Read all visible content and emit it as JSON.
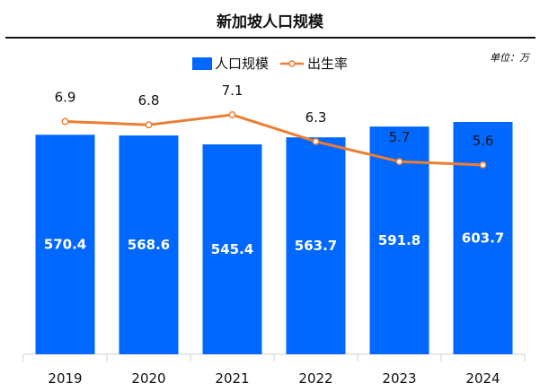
{
  "chart_data": {
    "type": "bar",
    "title": "新加坡人口规模",
    "unit_label": "单位：万",
    "categories": [
      "2019",
      "2020",
      "2021",
      "2022",
      "2023",
      "2024"
    ],
    "series": [
      {
        "name": "人口规模",
        "type": "bar",
        "color": "#0068FF",
        "values": [
          570.4,
          568.6,
          545.4,
          563.7,
          591.8,
          603.7
        ],
        "labels": [
          "570.4",
          "568.6",
          "545.4",
          "563.7",
          "591.8",
          "603.7"
        ]
      },
      {
        "name": "出生率",
        "type": "line",
        "color": "#ED7D31",
        "values": [
          6.9,
          6.8,
          7.1,
          6.3,
          5.7,
          5.6
        ],
        "labels": [
          "6.9",
          "6.8",
          "7.1",
          "6.3",
          "5.7",
          "5.6"
        ]
      }
    ],
    "ylim_bar": [
      0,
      603.7
    ],
    "legend_position": "top",
    "grid": false
  }
}
